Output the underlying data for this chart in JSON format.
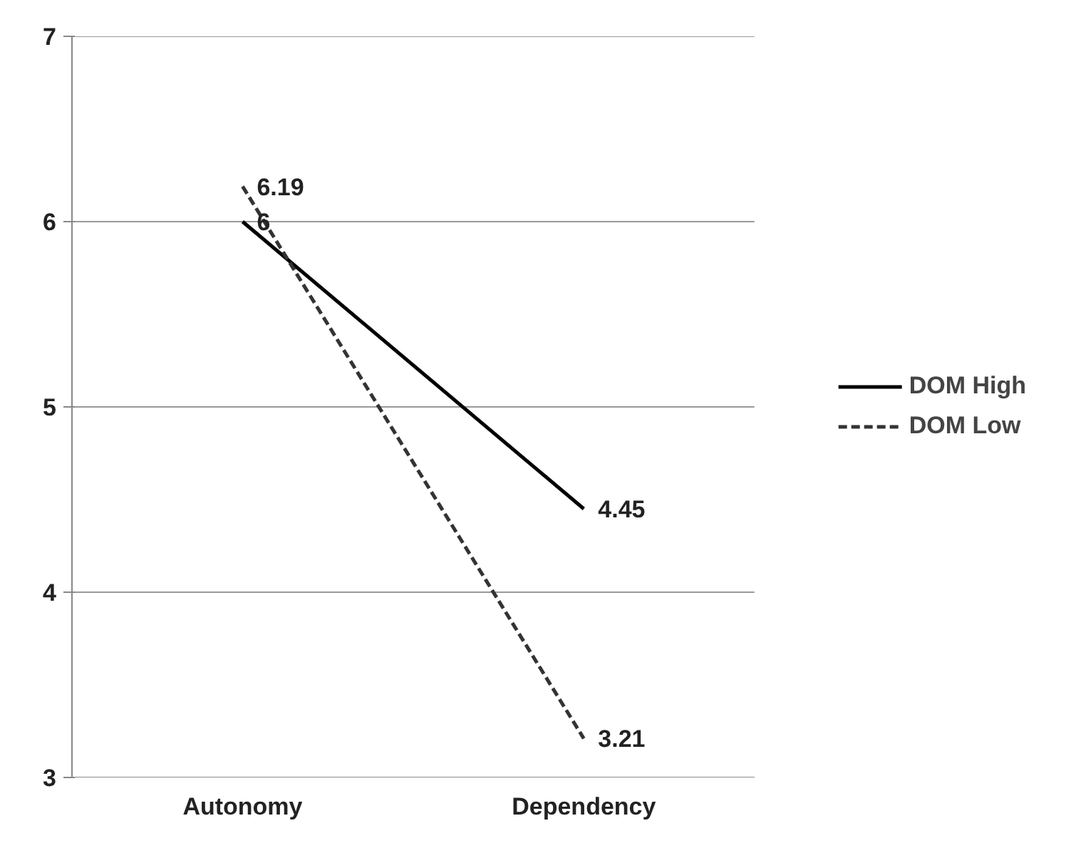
{
  "chart_data": {
    "type": "line",
    "categories": [
      "Autonomy",
      "Dependency"
    ],
    "series": [
      {
        "name": "DOM High",
        "color": "#000000",
        "values": [
          6,
          4.45
        ],
        "line_style": "solid"
      },
      {
        "name": "DOM Low",
        "color": "#333333",
        "values": [
          6.19,
          3.21
        ],
        "line_style": "dashed"
      }
    ],
    "ylim": [
      3,
      7
    ],
    "yticks": [
      3,
      4,
      5,
      6,
      7
    ],
    "grid": "y",
    "legend": "right",
    "data_labels": true,
    "marker": "none"
  }
}
